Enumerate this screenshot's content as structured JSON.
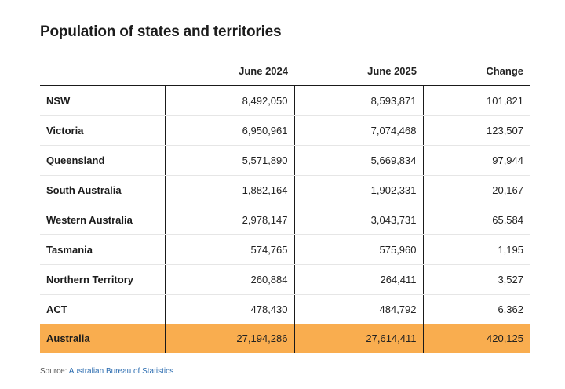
{
  "title": "Population of states and territories",
  "table": {
    "headers": [
      "",
      "June 2024",
      "June 2025",
      "Change"
    ],
    "rows": [
      {
        "name": "NSW",
        "june_2024": "8,492,050",
        "june_2025": "8,593,871",
        "change": "101,821"
      },
      {
        "name": "Victoria",
        "june_2024": "6,950,961",
        "june_2025": "7,074,468",
        "change": "123,507"
      },
      {
        "name": "Queensland",
        "june_2024": "5,571,890",
        "june_2025": "5,669,834",
        "change": "97,944"
      },
      {
        "name": "South Australia",
        "june_2024": "1,882,164",
        "june_2025": "1,902,331",
        "change": "20,167"
      },
      {
        "name": "Western Australia",
        "june_2024": "2,978,147",
        "june_2025": "3,043,731",
        "change": "65,584"
      },
      {
        "name": "Tasmania",
        "june_2024": "574,765",
        "june_2025": "575,960",
        "change": "1,195"
      },
      {
        "name": "Northern Territory",
        "june_2024": "260,884",
        "june_2025": "264,411",
        "change": "3,527"
      },
      {
        "name": "ACT",
        "june_2024": "478,430",
        "june_2025": "484,792",
        "change": "6,362"
      }
    ],
    "total": {
      "name": "Australia",
      "june_2024": "27,194,286",
      "june_2025": "27,614,411",
      "change": "420,125"
    }
  },
  "source": {
    "prefix": "Source: ",
    "link_text": "Australian Bureau of Statistics"
  },
  "colors": {
    "total_row_highlight": "#f9ad4f",
    "link": "#2b6cb0"
  }
}
